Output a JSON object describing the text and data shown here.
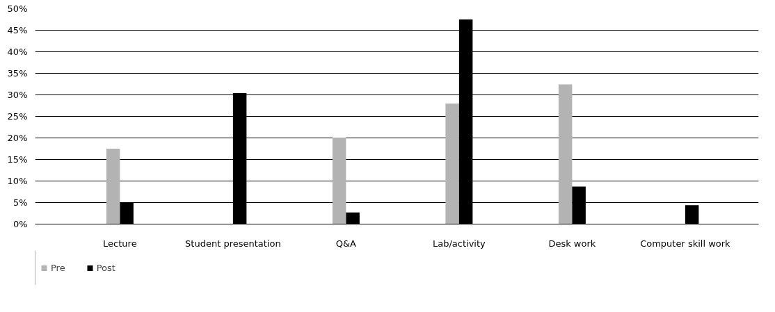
{
  "chart_data": {
    "type": "bar",
    "categories": [
      "Lecture",
      "Student presentation",
      "Q&A",
      "Lab/activity",
      "Desk work",
      "Computer skill work"
    ],
    "series": [
      {
        "name": "Pre",
        "color": "#b3b3b3",
        "values": [
          17.5,
          null,
          20.1,
          28.0,
          32.4,
          null
        ]
      },
      {
        "name": "Post",
        "color": "#000000",
        "values": [
          5.0,
          30.4,
          2.7,
          47.5,
          8.7,
          4.4
        ]
      }
    ],
    "ylim": [
      0,
      50
    ],
    "yticks": [
      {
        "value": 0,
        "label": "0%"
      },
      {
        "value": 5,
        "label": "5%"
      },
      {
        "value": 10,
        "label": "10%"
      },
      {
        "value": 15,
        "label": "15%"
      },
      {
        "value": 20,
        "label": "20%"
      },
      {
        "value": 25,
        "label": "25%"
      },
      {
        "value": 30,
        "label": "30%"
      },
      {
        "value": 35,
        "label": "35%"
      },
      {
        "value": 40,
        "label": "40%"
      },
      {
        "value": 45,
        "label": "45%"
      },
      {
        "value": 50,
        "label": "50%"
      }
    ],
    "grid": "y",
    "legend": "bottom left"
  }
}
